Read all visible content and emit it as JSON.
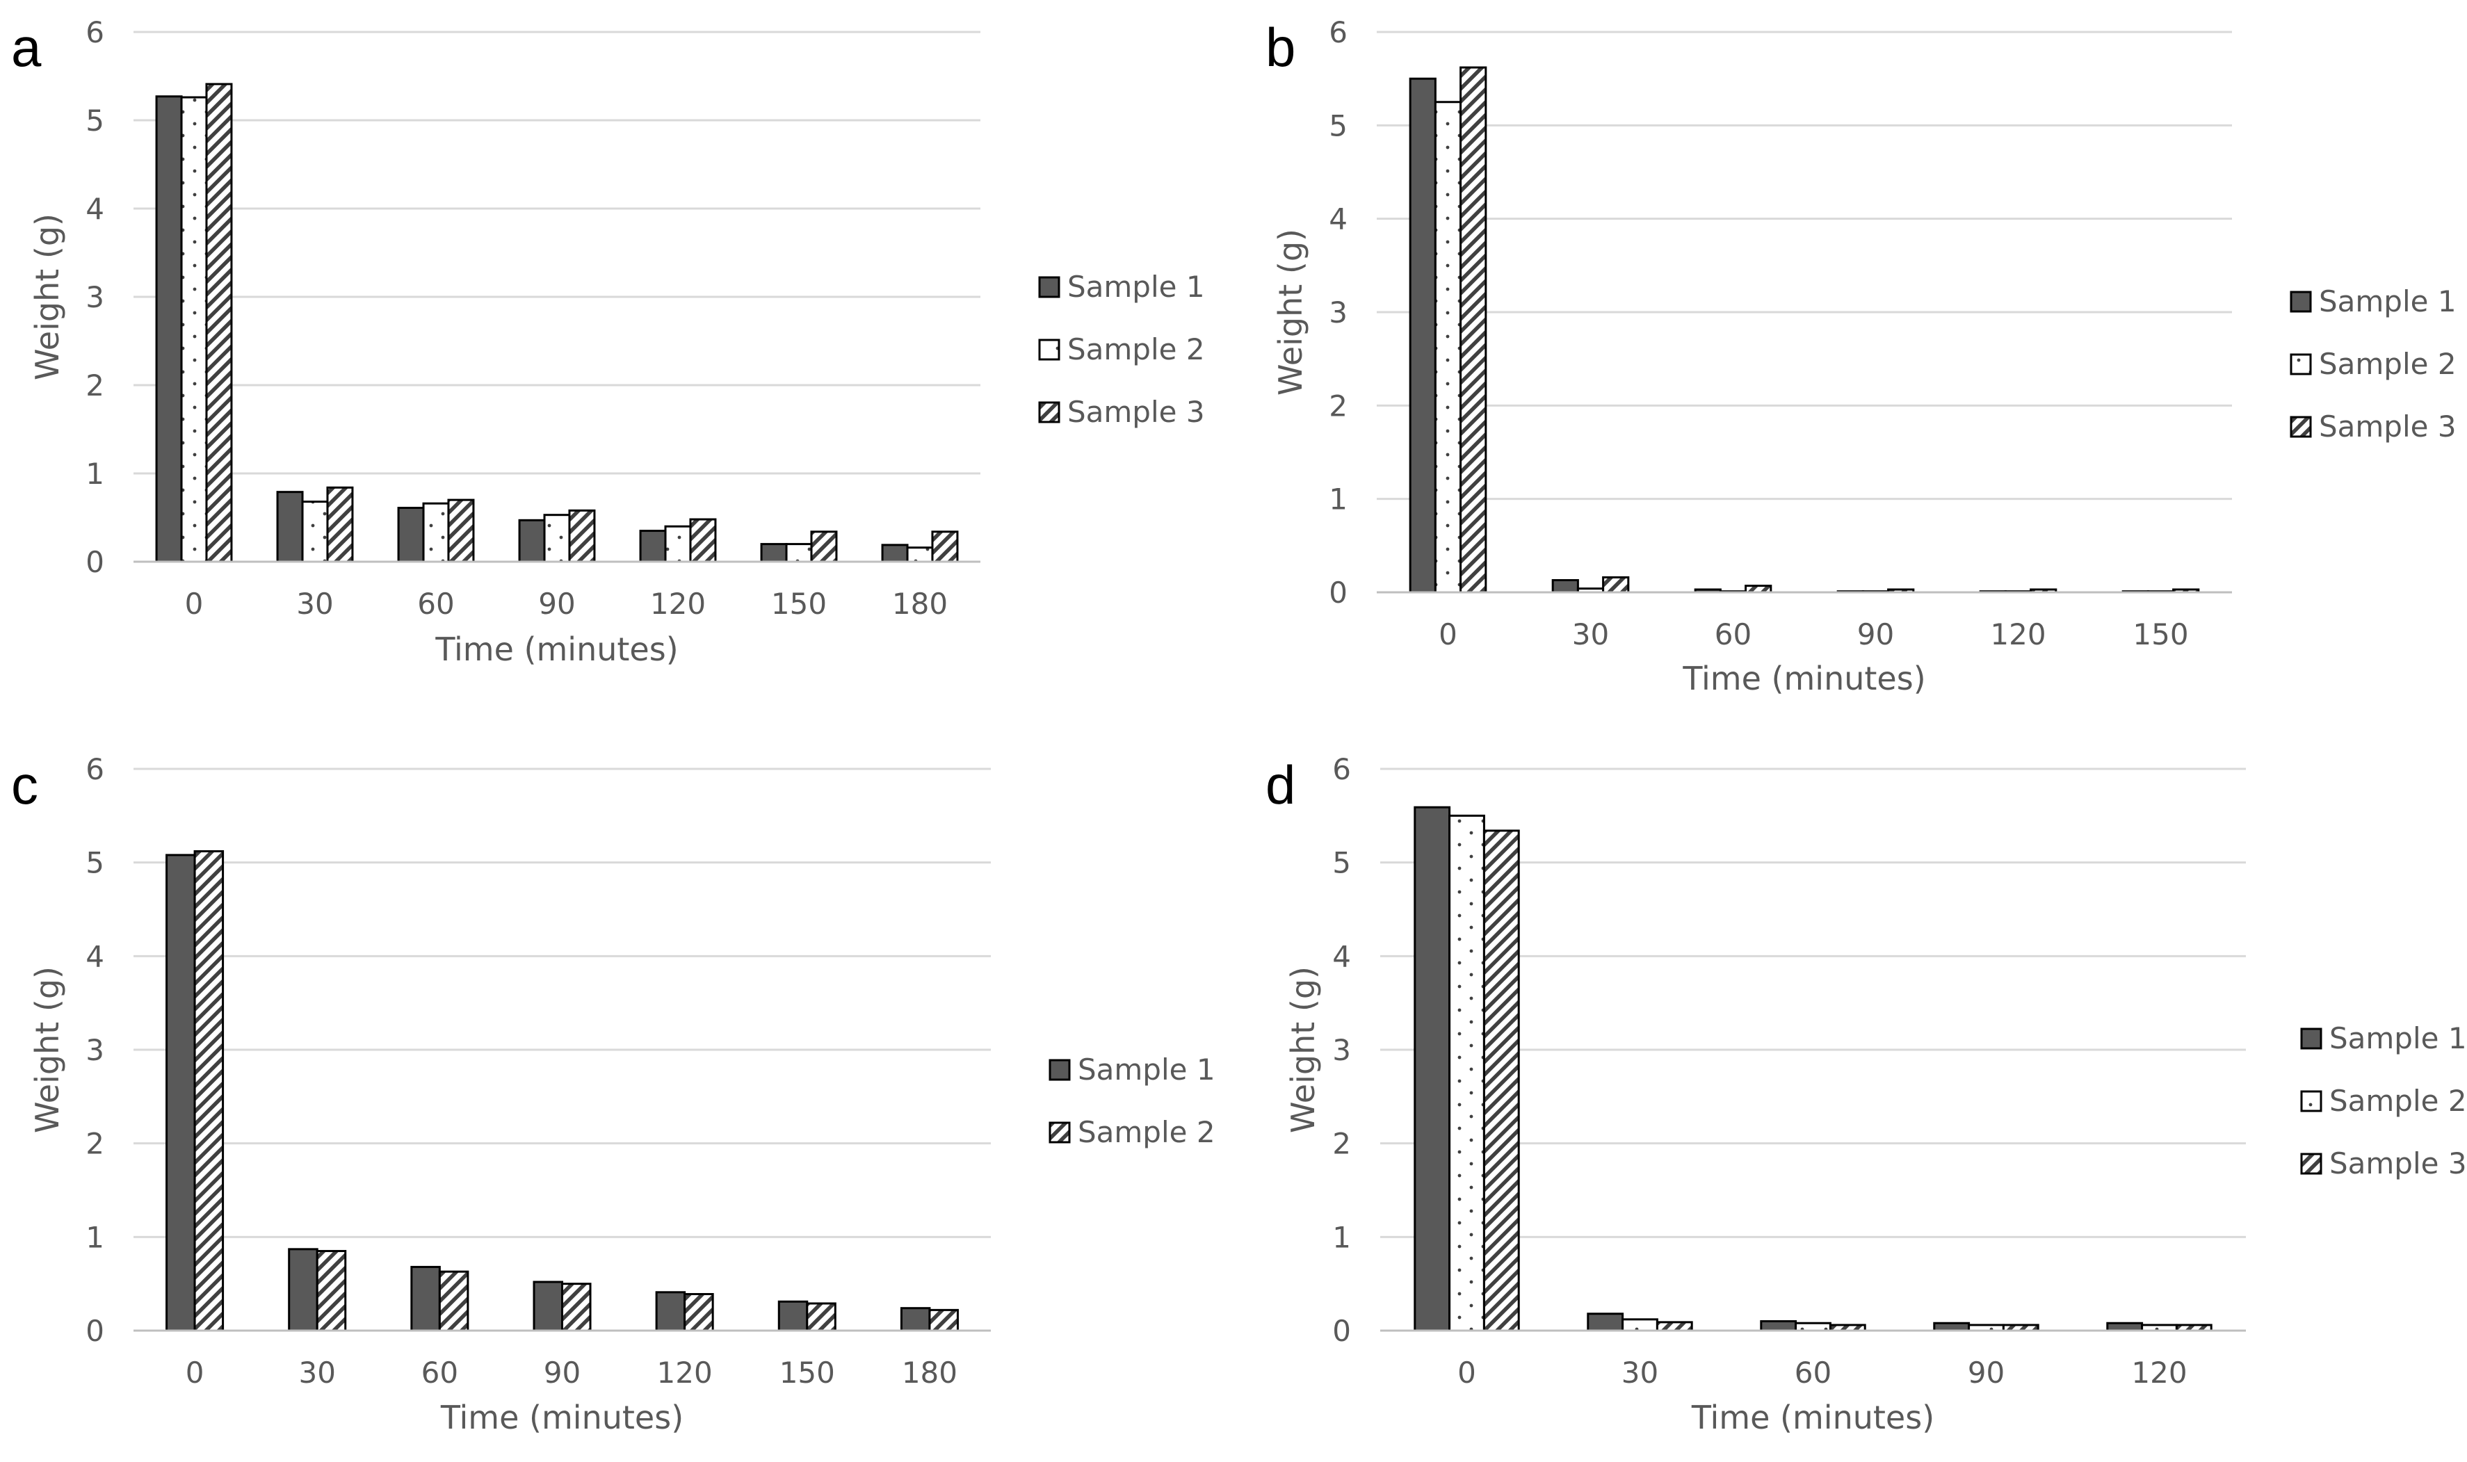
{
  "colors": {
    "sample1": "#595959",
    "bar_outline": "#000000",
    "grid": "#d9d9d9",
    "axis": "#bfbfbf",
    "text": "#595959"
  },
  "chart_data": [
    {
      "panel": "a",
      "type": "bar",
      "title": "",
      "xlabel": "Time (minutes)",
      "ylabel": "Weight (g)",
      "ylim": [
        0,
        6
      ],
      "yticks": [
        "0",
        "1",
        "2",
        "3",
        "4",
        "5",
        "6"
      ],
      "grid": true,
      "legend_position": "right",
      "categories": [
        "0",
        "30",
        "60",
        "90",
        "120",
        "150",
        "180"
      ],
      "series": [
        {
          "name": "Sample 1",
          "pattern": "solid",
          "values": [
            5.27,
            0.79,
            0.61,
            0.47,
            0.35,
            0.2,
            0.19
          ]
        },
        {
          "name": "Sample 2",
          "pattern": "dots",
          "values": [
            5.26,
            0.68,
            0.66,
            0.53,
            0.4,
            0.2,
            0.16
          ]
        },
        {
          "name": "Sample 3",
          "pattern": "hatch",
          "values": [
            5.41,
            0.84,
            0.7,
            0.58,
            0.48,
            0.34,
            0.34
          ]
        }
      ]
    },
    {
      "panel": "b",
      "type": "bar",
      "title": "",
      "xlabel": "Time (minutes)",
      "ylabel": "Weight (g)",
      "ylim": [
        0,
        6
      ],
      "yticks": [
        "0",
        "1",
        "2",
        "3",
        "4",
        "5",
        "6"
      ],
      "grid": true,
      "legend_position": "right",
      "categories": [
        "0",
        "30",
        "60",
        "90",
        "120",
        "150"
      ],
      "series": [
        {
          "name": "Sample 1",
          "pattern": "solid",
          "values": [
            5.5,
            0.13,
            0.03,
            0.01,
            0.01,
            0.01
          ]
        },
        {
          "name": "Sample 2",
          "pattern": "dots",
          "values": [
            5.25,
            0.04,
            0.01,
            0.01,
            0.01,
            0.01
          ]
        },
        {
          "name": "Sample 3",
          "pattern": "hatch",
          "values": [
            5.62,
            0.16,
            0.07,
            0.03,
            0.03,
            0.03
          ]
        }
      ]
    },
    {
      "panel": "c",
      "type": "bar",
      "title": "",
      "xlabel": "Time (minutes)",
      "ylabel": "Weight (g)",
      "ylim": [
        0,
        6
      ],
      "yticks": [
        "0",
        "1",
        "2",
        "3",
        "4",
        "5",
        "6"
      ],
      "grid": true,
      "legend_position": "right",
      "categories": [
        "0",
        "30",
        "60",
        "90",
        "120",
        "150",
        "180"
      ],
      "series": [
        {
          "name": "Sample 1",
          "pattern": "solid",
          "values": [
            5.08,
            0.87,
            0.68,
            0.52,
            0.41,
            0.31,
            0.24
          ]
        },
        {
          "name": "Sample 2",
          "pattern": "hatch",
          "values": [
            5.12,
            0.85,
            0.63,
            0.5,
            0.39,
            0.29,
            0.22
          ]
        }
      ]
    },
    {
      "panel": "d",
      "type": "bar",
      "title": "",
      "xlabel": "Time (minutes)",
      "ylabel": "Weight (g)",
      "ylim": [
        0,
        6
      ],
      "yticks": [
        "0",
        "1",
        "2",
        "3",
        "4",
        "5",
        "6"
      ],
      "grid": true,
      "legend_position": "right",
      "categories": [
        "0",
        "30",
        "60",
        "90",
        "120"
      ],
      "series": [
        {
          "name": "Sample 1",
          "pattern": "solid",
          "values": [
            5.59,
            0.18,
            0.1,
            0.08,
            0.08
          ]
        },
        {
          "name": "Sample 2",
          "pattern": "dots",
          "values": [
            5.5,
            0.12,
            0.08,
            0.06,
            0.06
          ]
        },
        {
          "name": "Sample 3",
          "pattern": "hatch",
          "values": [
            5.34,
            0.09,
            0.06,
            0.06,
            0.06
          ]
        }
      ]
    }
  ]
}
